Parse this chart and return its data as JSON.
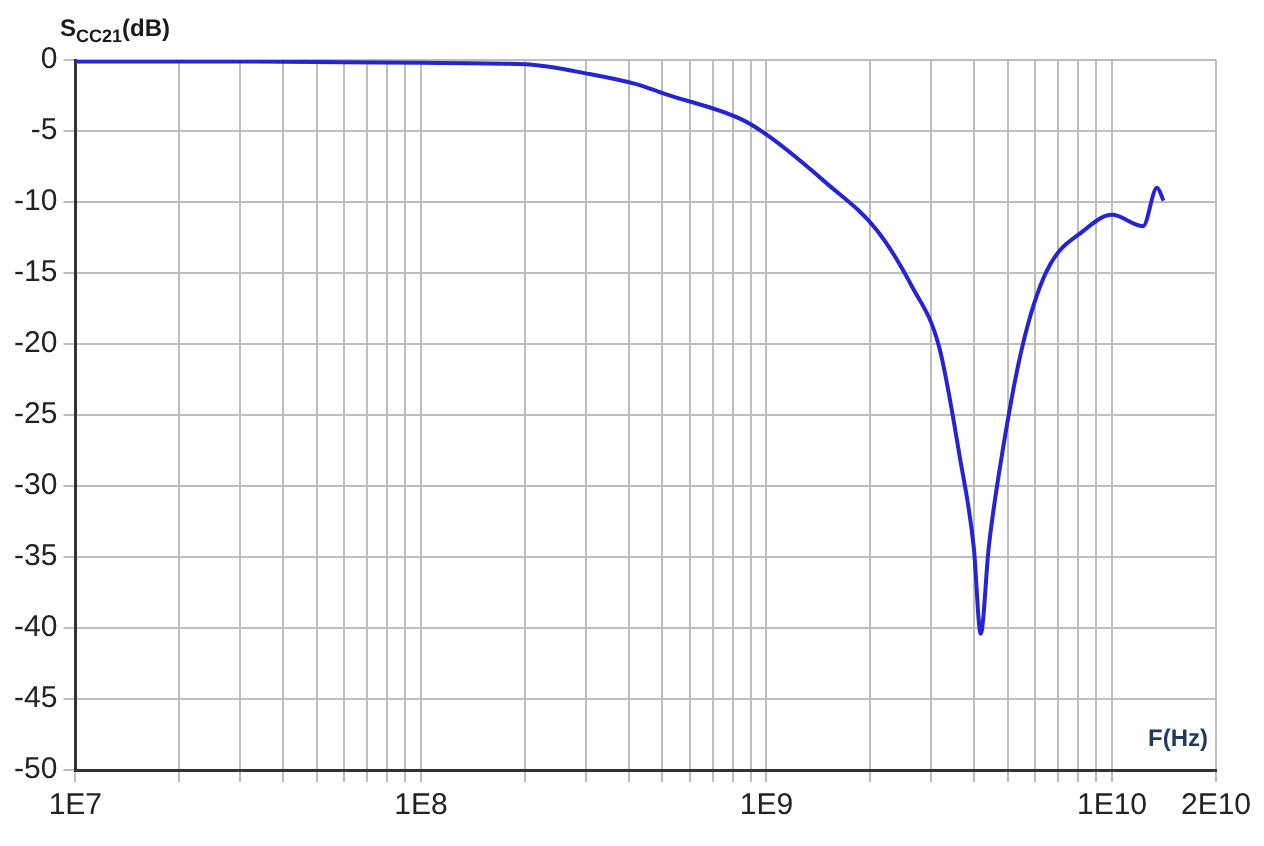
{
  "chart_data": {
    "type": "line",
    "ylabel": "S$_{CC21}$(dB)",
    "xlabel": "F(Hz)",
    "log": "x",
    "grid": true,
    "legend": false,
    "marker": "none",
    "line_style": "solid",
    "xlim": [
      10000000,
      20000000000
    ],
    "ylim": [
      -50,
      0
    ],
    "yticks": [
      -50,
      -45,
      -40,
      -35,
      -30,
      -25,
      -20,
      -15,
      -10,
      -5,
      0
    ],
    "xticks": [
      {
        "value": 10000000,
        "label": "1E7"
      },
      {
        "value": 20000000,
        "label": null
      },
      {
        "value": 30000000,
        "label": null
      },
      {
        "value": 40000000,
        "label": null
      },
      {
        "value": 50000000,
        "label": null
      },
      {
        "value": 60000000,
        "label": null
      },
      {
        "value": 70000000,
        "label": null
      },
      {
        "value": 80000000,
        "label": null
      },
      {
        "value": 90000000,
        "label": null
      },
      {
        "value": 100000000,
        "label": "1E8"
      },
      {
        "value": 200000000,
        "label": null
      },
      {
        "value": 300000000,
        "label": null
      },
      {
        "value": 400000000,
        "label": null
      },
      {
        "value": 500000000,
        "label": null
      },
      {
        "value": 600000000,
        "label": null
      },
      {
        "value": 700000000,
        "label": null
      },
      {
        "value": 800000000,
        "label": null
      },
      {
        "value": 900000000,
        "label": null
      },
      {
        "value": 1000000000,
        "label": "1E9"
      },
      {
        "value": 2000000000,
        "label": null
      },
      {
        "value": 3000000000,
        "label": null
      },
      {
        "value": 4000000000,
        "label": null
      },
      {
        "value": 5000000000,
        "label": null
      },
      {
        "value": 6000000000,
        "label": null
      },
      {
        "value": 7000000000,
        "label": null
      },
      {
        "value": 8000000000,
        "label": null
      },
      {
        "value": 9000000000,
        "label": null
      },
      {
        "value": 10000000000,
        "label": "1E10"
      },
      {
        "value": 20000000000,
        "label": "2E10"
      }
    ],
    "series": [
      {
        "color": "#2424d4",
        "x": [
          10000000,
          30000000,
          100000000,
          200000000,
          310000000,
          420000000,
          510000000,
          850000000,
          1020000000,
          1480000000,
          2090000000,
          2630000000,
          3160000000,
          3630000000,
          3980000000,
          4170000000,
          4400000000,
          4790000000,
          5500000000,
          6460000000,
          8300000000,
          10000000000,
          12300000000,
          13500000000,
          14100000000
        ],
        "values": [
          -0.1,
          -0.1,
          -0.2,
          -0.3,
          -1.0,
          -1.7,
          -2.4,
          -4.2,
          -5.4,
          -8.6,
          -12,
          -15.9,
          -20.2,
          -28,
          -34.3,
          -40.4,
          -34.3,
          -28,
          -20.2,
          -14.9,
          -12,
          -10.9,
          -11.7,
          -9.0,
          -9.9
        ]
      }
    ]
  }
}
